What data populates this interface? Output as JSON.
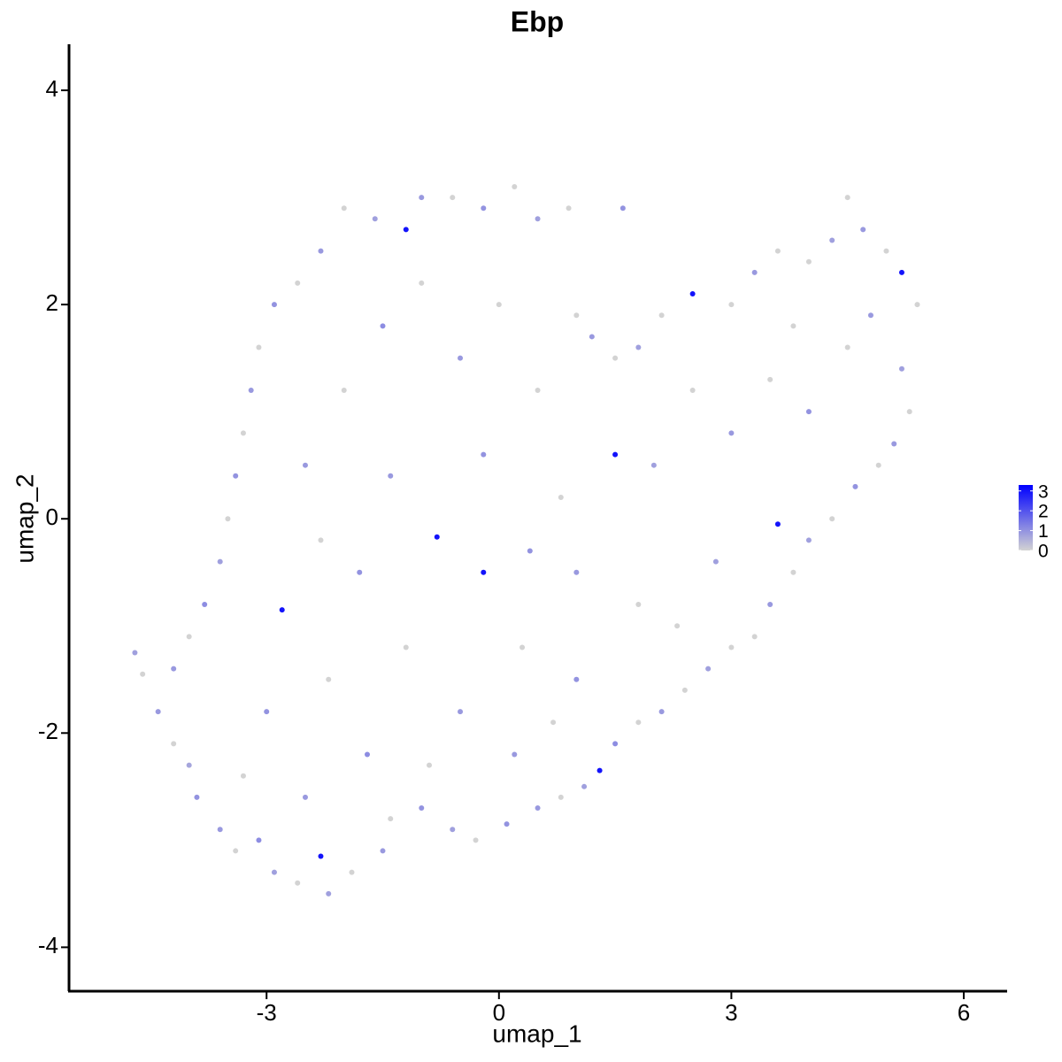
{
  "chart_data": {
    "type": "scatter",
    "title": "Ebp",
    "x_label": "umap_1",
    "y_label": "umap_2",
    "xlim": [
      -5.55,
      6.56
    ],
    "ylim": [
      -4.41,
      4.43
    ],
    "xticks": [
      -3,
      0,
      3,
      6
    ],
    "yticks": [
      -4,
      -2,
      0,
      2,
      4
    ],
    "color_low": "#d3d3d3",
    "color_high": "#0000ff",
    "color_lim": [
      0,
      3.3
    ],
    "legend_ticks": [
      0,
      1,
      2,
      3
    ],
    "x": [
      -4.7,
      -4.6,
      -4.4,
      -4.2,
      -4.0,
      -3.9,
      -3.6,
      -3.4,
      -3.1,
      -2.9,
      -2.6,
      -2.3,
      -2.2,
      -1.9,
      -1.5,
      -1.4,
      -1.0,
      -0.6,
      -0.3,
      0.1,
      0.5,
      0.8,
      1.1,
      1.3,
      1.5,
      1.8,
      2.1,
      2.4,
      2.7,
      3.0,
      3.3,
      3.5,
      3.8,
      3.6,
      4.0,
      4.3,
      4.6,
      4.9,
      5.1,
      5.3,
      5.2,
      5.4,
      5.2,
      5.0,
      4.7,
      4.5,
      4.3,
      4.0,
      3.6,
      3.3,
      3.0,
      2.5,
      2.1,
      1.8,
      1.5,
      1.2,
      1.0,
      1.6,
      0.9,
      0.5,
      0.2,
      -0.2,
      -0.6,
      -1.0,
      -1.2,
      -1.6,
      -2.0,
      -2.3,
      -2.6,
      -2.9,
      -3.1,
      -3.2,
      -3.3,
      -3.4,
      -3.5,
      -3.6,
      -3.8,
      -4.0,
      -4.2,
      -2.8,
      -2.5,
      -2.0,
      -1.5,
      -1.0,
      -0.5,
      0.0,
      0.5,
      -0.2,
      -0.8,
      -0.2,
      1.5,
      0.8,
      1.0,
      1.8,
      2.0,
      2.5,
      3.0,
      3.5,
      4.0,
      4.5,
      4.8,
      3.8,
      2.8,
      2.3,
      1.0,
      0.3,
      -0.5,
      -1.2,
      -1.8,
      -2.2,
      -3.0,
      -3.3,
      -2.5,
      -1.7,
      -0.9,
      0.2,
      0.7,
      -1.4,
      -2.3,
      0.4
    ],
    "y": [
      -1.25,
      -1.45,
      -1.8,
      -2.1,
      -2.3,
      -2.6,
      -2.9,
      -3.1,
      -3.0,
      -3.3,
      -3.4,
      -3.15,
      -3.5,
      -3.3,
      -3.1,
      -2.8,
      -2.7,
      -2.9,
      -3.0,
      -2.85,
      -2.7,
      -2.6,
      -2.5,
      -2.35,
      -2.1,
      -1.9,
      -1.8,
      -1.6,
      -1.4,
      -1.2,
      -1.1,
      -0.8,
      -0.5,
      -0.05,
      -0.2,
      0.0,
      0.3,
      0.5,
      0.7,
      1.0,
      1.4,
      2.0,
      2.3,
      2.5,
      2.7,
      3.0,
      2.6,
      2.4,
      2.5,
      2.3,
      2.0,
      2.1,
      1.9,
      1.6,
      1.5,
      1.7,
      1.9,
      2.9,
      2.9,
      2.8,
      3.1,
      2.9,
      3.0,
      3.0,
      2.7,
      2.8,
      2.9,
      2.5,
      2.2,
      2.0,
      1.6,
      1.2,
      0.8,
      0.4,
      0.0,
      -0.4,
      -0.8,
      -1.1,
      -1.4,
      -0.85,
      0.5,
      1.2,
      1.8,
      2.2,
      1.5,
      2.0,
      1.2,
      0.6,
      -0.17,
      -0.5,
      0.6,
      0.2,
      -0.5,
      -0.8,
      0.5,
      1.2,
      0.8,
      1.3,
      1.0,
      1.6,
      1.9,
      1.8,
      -0.4,
      -1.0,
      -1.5,
      -1.2,
      -1.8,
      -1.2,
      -0.5,
      -1.5,
      -1.8,
      -2.4,
      -2.6,
      -2.2,
      -2.3,
      -2.2,
      -1.9,
      0.4,
      -0.2,
      -0.3
    ],
    "values": [
      0.8,
      0,
      0.9,
      0,
      0.7,
      1.0,
      0.9,
      0,
      1.1,
      0.8,
      0,
      3.0,
      0.8,
      0,
      0.9,
      0,
      1.0,
      0.8,
      0,
      1.0,
      0.9,
      0,
      0.8,
      3.0,
      1.1,
      0,
      0.9,
      0,
      0.8,
      0,
      0,
      0.9,
      0,
      3.0,
      0.8,
      0,
      1.0,
      0,
      0.9,
      0,
      0.8,
      0,
      3.0,
      0,
      0.9,
      0,
      0.8,
      0,
      0,
      0.9,
      0,
      3.0,
      0,
      0.8,
      0,
      0.9,
      0,
      1.0,
      0,
      0.8,
      0,
      1.0,
      0,
      0.9,
      3.0,
      0.8,
      0,
      0.9,
      0,
      1.0,
      0,
      0.9,
      0,
      1.0,
      0,
      0.8,
      1.1,
      0,
      0.9,
      3.0,
      0.9,
      0,
      1.1,
      0,
      0.9,
      0,
      0,
      1.0,
      3.0,
      3.0,
      3.0,
      0,
      0.9,
      0,
      0.8,
      0,
      0.9,
      0,
      1.0,
      0,
      0.9,
      0,
      0.8,
      0,
      1.0,
      0,
      0.9,
      0,
      1.0,
      0,
      1.0,
      0,
      0.9,
      1.1,
      0,
      0.9,
      0,
      0.9,
      0,
      1.0
    ]
  }
}
